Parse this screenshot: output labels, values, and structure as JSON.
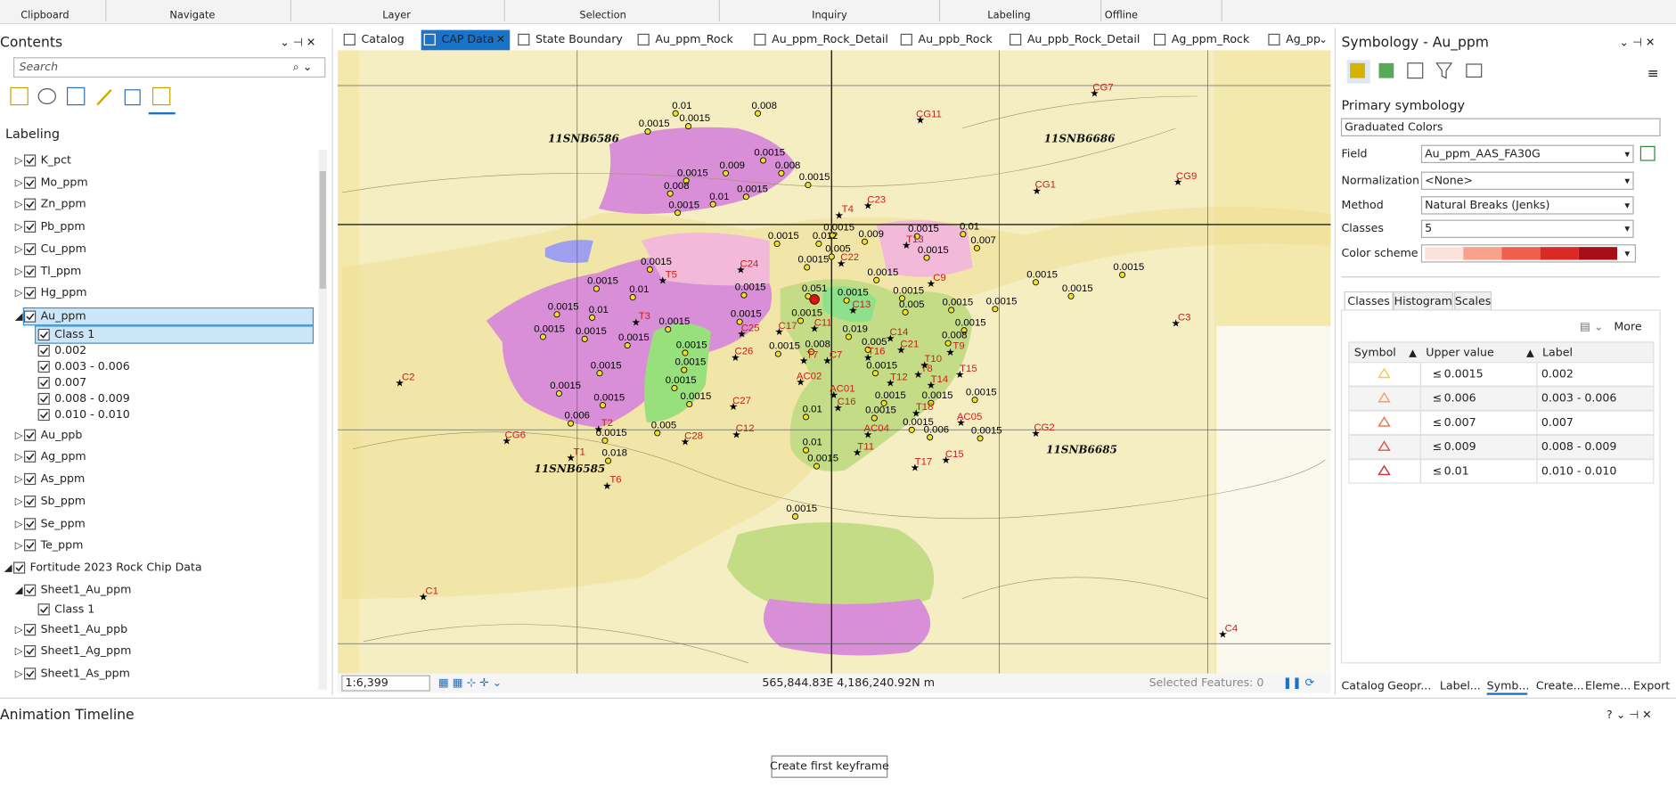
{
  "ribbon": {
    "groups": [
      "Clipboard",
      "Navigate",
      "Layer",
      "Selection",
      "Inquiry",
      "Labeling",
      "Offline"
    ]
  },
  "contents": {
    "title": "Contents",
    "search": "Search",
    "section": "Labeling",
    "items": [
      "K_pct",
      "Mo_ppm",
      "Zn_ppm",
      "Pb_ppm",
      "Cu_ppm",
      "Tl_ppm",
      "Hg_ppm",
      "Au_ppm",
      "Class 1",
      "0.002",
      "0.003 - 0.006",
      "0.007",
      "0.008 - 0.009",
      "0.010 - 0.010",
      "Au_ppb",
      "Ag_ppm",
      "As_ppm",
      "Sb_ppm",
      "Se_ppm",
      "Te_ppm",
      "Fortitude 2023 Rock Chip Data",
      "Sheet1_Au_ppm",
      "Class 1",
      "Sheet1_Au_ppb",
      "Sheet1_Ag_ppm",
      "Sheet1_As_ppm"
    ]
  },
  "map_tabs": [
    "Catalog",
    "CAP Data",
    "State Boundary",
    "Au_ppm_Rock",
    "Au_ppm_Rock_Detail",
    "Au_ppb_Rock",
    "Au_ppb_Rock_Detail",
    "Ag_ppm_Rock",
    "Ag_pp"
  ],
  "map": {
    "ids": [
      "C2",
      "CG6",
      "C1",
      "T1",
      "T2",
      "T3",
      "T5",
      "T6",
      "C24",
      "C25",
      "C26",
      "C27",
      "C28",
      "C12",
      "T7",
      "AC02",
      "C17",
      "C11",
      "C7",
      "T4",
      "C23",
      "C22",
      "T13",
      "C9",
      "C13",
      "C14",
      "T16",
      "C21",
      "T8",
      "T9",
      "T10",
      "T12",
      "T14",
      "T15",
      "AC01",
      "C16",
      "T18",
      "AC04",
      "AC05",
      "T11",
      "T17",
      "C15",
      "CG2",
      "C3",
      "CG1",
      "CG9",
      "CG7",
      "CG11",
      "C4"
    ],
    "grid_labels": [
      "11SNB6586",
      "11SNB6686",
      "11SNB6585",
      "11SNB6685"
    ],
    "values": [
      "0.01",
      "0.008",
      "0.0015",
      "0.0015",
      "0.0015",
      "0.009",
      "0.008",
      "0.0015",
      "0.0015",
      "0.008",
      "0.0015",
      "0.01",
      "0.0015",
      "0.0015",
      "0.0015",
      "0.012",
      "0.009",
      "0.0015",
      "0.01",
      "0.007",
      "0.0015",
      "0.0015",
      "0.0015",
      "0.0015",
      "0.01",
      "0.0015",
      "0.0015",
      "0.01",
      "0.0015",
      "0.0015",
      "0.0015",
      "0.0015",
      "0.0015",
      "0.0015",
      "0.0015",
      "0.0015",
      "0.0015",
      "0.0015",
      "0.0015",
      "0.0015",
      "0.006",
      "0.005",
      "0.0015",
      "0.018",
      "0.051",
      "0.0015",
      "0.0015",
      "0.005",
      "0.0015",
      "0.019",
      "0.008",
      "0.005",
      "0.0015",
      "0.0015",
      "0.0015",
      "0.0015",
      "0.008",
      "0.0015",
      "0.0015",
      "0.0015",
      "0.0015",
      "0.01",
      "0.0015",
      "0.0015",
      "0.006",
      "0.0015",
      "0.01",
      "0.0015",
      "0.0015",
      "0.0015",
      "0.0015",
      "0.0015",
      "0.0015",
      "0.005"
    ],
    "scale": "1:6,399",
    "coords": "565,844.83E 4,186,240.92N m",
    "selected": "Selected Features: 0"
  },
  "symbology": {
    "title": "Symbology - Au_ppm",
    "primary": "Primary symbology",
    "renderer": "Graduated Colors",
    "fields": [
      {
        "label": "Field",
        "value": "Au_ppm_AAS_FA30G"
      },
      {
        "label": "Normalization",
        "value": "<None>"
      },
      {
        "label": "Method",
        "value": "Natural Breaks (Jenks)"
      },
      {
        "label": "Classes",
        "value": "5"
      }
    ],
    "color_scheme": "Color scheme",
    "tabs": [
      "Classes",
      "Histogram",
      "Scales"
    ],
    "more": "More",
    "headers": [
      "Symbol",
      "Upper value",
      "Label"
    ],
    "le": "≤",
    "rows": [
      {
        "upper": "0.0015",
        "label": "0.002"
      },
      {
        "upper": "0.006",
        "label": "0.003 - 0.006"
      },
      {
        "upper": "0.007",
        "label": "0.007"
      },
      {
        "upper": "0.009",
        "label": "0.008 - 0.009"
      },
      {
        "upper": "0.01",
        "label": "0.010 - 0.010"
      }
    ]
  },
  "bottom_tabs": [
    "Catalog",
    "Geopr...",
    "Label...",
    "Symb...",
    "Create...",
    "Eleme...",
    "Export"
  ],
  "timeline": {
    "title": "Animation Timeline",
    "button": "Create first keyframe"
  }
}
